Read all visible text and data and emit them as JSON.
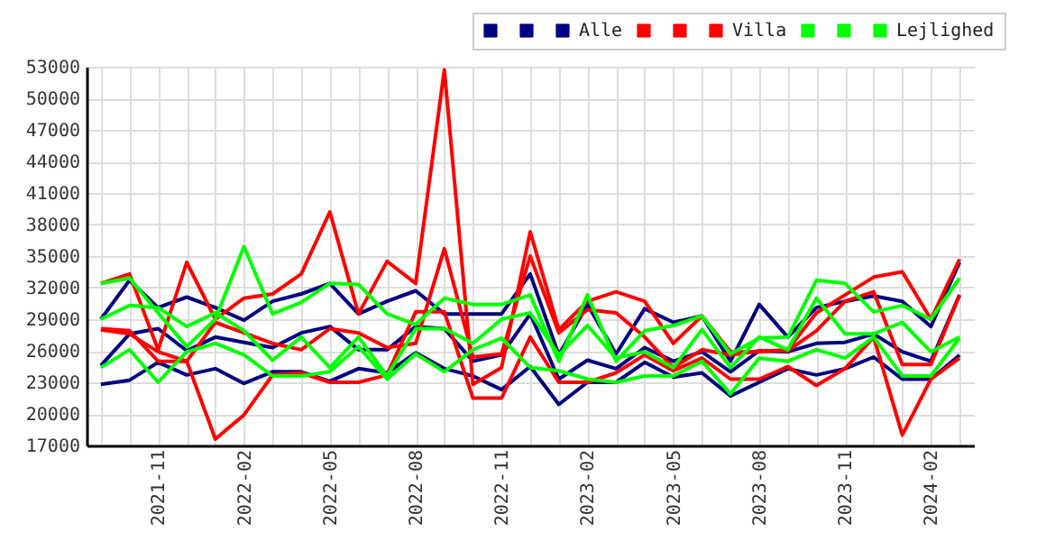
{
  "chart_data": {
    "type": "line",
    "categories": [
      null,
      null,
      "2021-11",
      null,
      null,
      "2022-02",
      null,
      null,
      "2022-05",
      null,
      null,
      "2022-08",
      null,
      null,
      "2022-11",
      null,
      null,
      "2023-02",
      null,
      null,
      "2023-05",
      null,
      null,
      "2023-08",
      null,
      null,
      "2023-11",
      null,
      null,
      "2024-02",
      null
    ],
    "series": [
      {
        "color": "#000080",
        "values": [
          29000,
          32700,
          30100,
          31100,
          30100,
          28900,
          30700,
          31400,
          32400,
          29500,
          30700,
          31700,
          29500,
          29500,
          29500,
          33300,
          25600,
          30400,
          25700,
          30000,
          28700,
          29300,
          25000,
          30400,
          27300,
          30100,
          30700,
          31200,
          30700,
          28300,
          34400
        ]
      },
      {
        "color": "#000080",
        "values": [
          24600,
          27600,
          28100,
          26000,
          27300,
          26800,
          26300,
          27700,
          28300,
          26100,
          26100,
          28300,
          28100,
          25000,
          25600,
          29500,
          23300,
          25100,
          24300,
          26300,
          25000,
          25900,
          24000,
          26000,
          25900,
          26700,
          26800,
          27600,
          25900,
          25000,
          31300
        ]
      },
      {
        "name": "Alle",
        "color": "#000080",
        "values": [
          22800,
          23200,
          24900,
          23700,
          24300,
          22900,
          24000,
          24000,
          23100,
          24300,
          23900,
          25800,
          24300,
          23600,
          22300,
          24500,
          20900,
          23000,
          23000,
          24900,
          23500,
          23900,
          21700,
          23000,
          24300,
          23700,
          24300,
          25400,
          23300,
          23300,
          25600
        ]
      },
      {
        "color": "#ff0000",
        "values": [
          32400,
          33300,
          26100,
          34400,
          29000,
          31000,
          31400,
          33300,
          39200,
          29500,
          34500,
          32400,
          52700,
          22800,
          24400,
          37300,
          28000,
          30700,
          31600,
          30700,
          26700,
          29300,
          25900,
          25900,
          26100,
          29600,
          31300,
          33000,
          33500,
          29000,
          34700
        ]
      },
      {
        "color": "#ff0000",
        "values": [
          28000,
          27600,
          25900,
          25000,
          28700,
          27700,
          26700,
          26100,
          28100,
          27700,
          26300,
          26700,
          35700,
          25400,
          25700,
          35000,
          27700,
          29900,
          29600,
          27300,
          24400,
          26100,
          25600,
          26000,
          26000,
          27900,
          30700,
          31600,
          24700,
          24700,
          31300
        ]
      },
      {
        "name": "Villa",
        "color": "#ff0000",
        "values": [
          28100,
          27900,
          25000,
          25000,
          17600,
          19900,
          23700,
          23900,
          23000,
          23000,
          23700,
          29700,
          29700,
          21500,
          21500,
          27300,
          23000,
          23000,
          23900,
          25600,
          24100,
          25300,
          23300,
          23300,
          24500,
          22700,
          24300,
          27300,
          18000,
          23300,
          25300
        ]
      },
      {
        "color": "#00ff00",
        "values": [
          32400,
          32900,
          29600,
          26400,
          29000,
          35900,
          29500,
          30600,
          32400,
          32300,
          29500,
          28500,
          31000,
          30400,
          30400,
          31300,
          25000,
          31300,
          25000,
          27900,
          28400,
          29300,
          25700,
          27200,
          27300,
          32700,
          32400,
          29700,
          30300,
          29000,
          32900
        ]
      },
      {
        "color": "#00ff00",
        "values": [
          29000,
          30300,
          30100,
          28300,
          29600,
          27900,
          25100,
          27300,
          24400,
          27300,
          23600,
          28100,
          28100,
          26700,
          29000,
          29600,
          25600,
          28400,
          25300,
          25900,
          24400,
          28000,
          24400,
          27300,
          26100,
          31000,
          27600,
          27600,
          28700,
          25900,
          27300
        ]
      },
      {
        "name": "Lejlighed",
        "color": "#00ff00",
        "values": [
          24400,
          26100,
          23000,
          25900,
          26700,
          25600,
          23600,
          23600,
          24000,
          26400,
          23300,
          25700,
          24000,
          26100,
          27200,
          24400,
          24100,
          23300,
          23000,
          23600,
          23600,
          25000,
          21900,
          25300,
          25000,
          26100,
          25300,
          27300,
          23600,
          23600,
          27200
        ]
      }
    ],
    "ylim": [
      17000,
      53000
    ],
    "yticks": [
      17000,
      20000,
      23000,
      26000,
      29000,
      32000,
      35000,
      38000,
      41000,
      44000,
      47000,
      50000,
      53000
    ],
    "grid": true,
    "legend": "top right",
    "marker": "none",
    "line_style": "solid"
  }
}
